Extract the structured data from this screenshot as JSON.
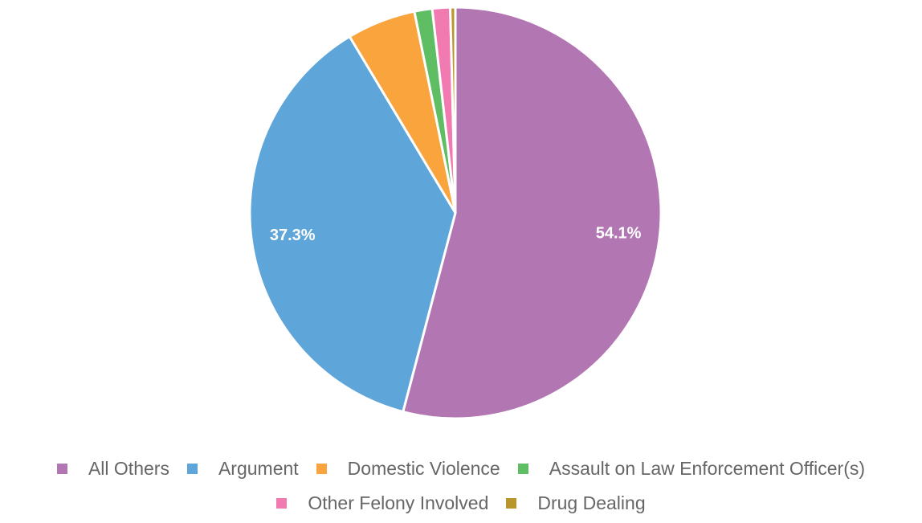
{
  "chart_data": {
    "type": "pie",
    "title": "",
    "slices": [
      {
        "label": "All Others",
        "value": 54.1,
        "color": "#b277b2",
        "display_label": "54.1%"
      },
      {
        "label": "Argument",
        "value": 37.3,
        "color": "#5ea5da",
        "display_label": "37.3%"
      },
      {
        "label": "Domestic Violence",
        "value": 5.4,
        "color": "#f9a43d",
        "display_label": ""
      },
      {
        "label": "Assault on Law Enforcement Officer(s)",
        "value": 1.4,
        "color": "#5fbe63",
        "display_label": ""
      },
      {
        "label": "Other Felony Involved",
        "value": 1.4,
        "color": "#f17bb0",
        "display_label": ""
      },
      {
        "label": "Drug Dealing",
        "value": 0.4,
        "color": "#b9962c",
        "display_label": ""
      }
    ],
    "legend_position": "bottom"
  },
  "legend": {
    "row1": [
      {
        "label": "All Others",
        "color": "#b277b2"
      },
      {
        "label": "Argument",
        "color": "#5ea5da"
      },
      {
        "label": "Domestic Violence",
        "color": "#f9a43d"
      },
      {
        "label": "Assault on Law Enforcement Officer(s)",
        "color": "#5fbe63"
      }
    ],
    "row2": [
      {
        "label": "Other Felony Involved",
        "color": "#f17bb0"
      },
      {
        "label": "Drug Dealing",
        "color": "#b9962c"
      }
    ]
  }
}
